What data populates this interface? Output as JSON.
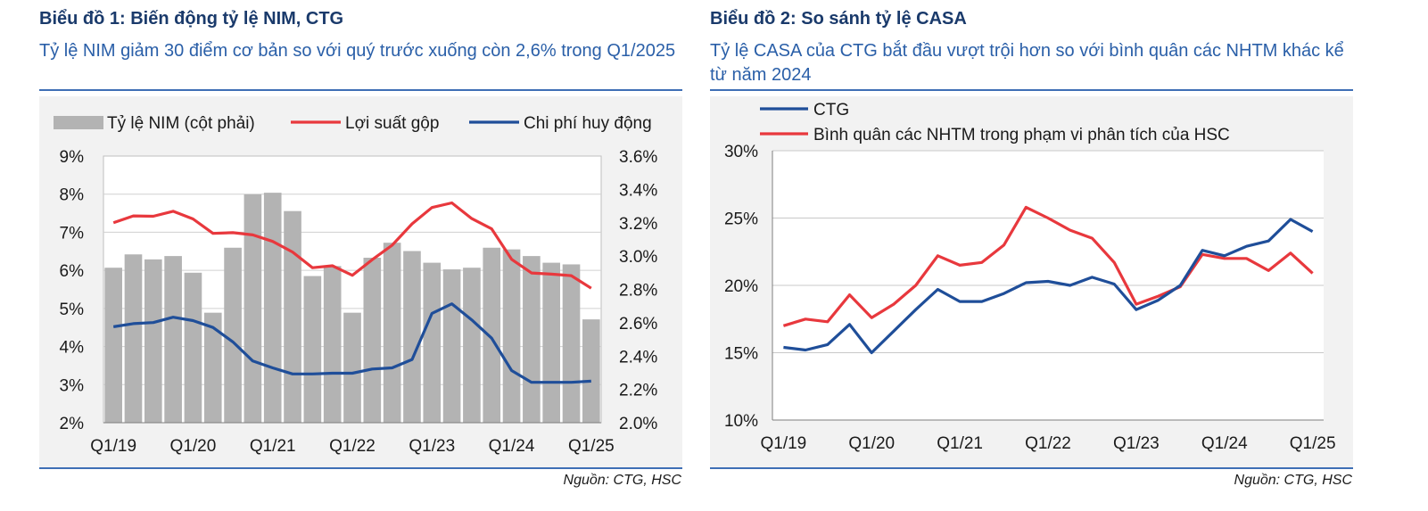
{
  "chart_data": [
    {
      "type": "bar+line",
      "title": "Biểu đồ 1: Biến động tỷ lệ NIM, CTG",
      "subtitle": "Tỷ lệ NIM giảm 30 điểm cơ bản so với quý trước xuống còn 2,6% trong Q1/2025",
      "source": "Nguồn: CTG, HSC",
      "x_tick_labels": [
        "Q1/19",
        "Q1/20",
        "Q1/21",
        "Q1/22",
        "Q1/23",
        "Q1/24",
        "Q1/25"
      ],
      "n_periods": 25,
      "left_axis": {
        "ticks": [
          "9%",
          "8%",
          "7%",
          "6%",
          "5%",
          "4%",
          "3%",
          "2%"
        ],
        "ylim": [
          2,
          9
        ]
      },
      "right_axis": {
        "ticks": [
          "3.6%",
          "3.4%",
          "3.2%",
          "3.0%",
          "2.8%",
          "2.6%",
          "2.4%",
          "2.2%",
          "2.0%"
        ],
        "ylim": [
          2.0,
          3.6
        ]
      },
      "series": [
        {
          "name": "Tỷ lệ NIM (cột phải)",
          "kind": "bar",
          "axis": "right",
          "color": "#b3b3b3",
          "values": [
            2.93,
            3.01,
            2.98,
            3.0,
            2.9,
            2.66,
            3.05,
            3.37,
            3.38,
            3.27,
            2.88,
            2.94,
            2.66,
            2.99,
            3.08,
            3.03,
            2.96,
            2.92,
            2.93,
            3.05,
            3.04,
            3.0,
            2.96,
            2.95,
            2.62
          ]
        },
        {
          "name": "Lợi suất gộp",
          "kind": "line",
          "axis": "left",
          "color": "#e8383d",
          "values": [
            7.25,
            7.43,
            7.42,
            7.55,
            7.35,
            6.97,
            6.99,
            6.93,
            6.76,
            6.48,
            6.07,
            6.12,
            5.87,
            6.28,
            6.66,
            7.22,
            7.65,
            7.77,
            7.36,
            7.09,
            6.29,
            5.93,
            5.9,
            5.86,
            5.53
          ]
        },
        {
          "name": "Chi phí huy động",
          "kind": "line",
          "axis": "left",
          "color": "#1f4e99",
          "values": [
            4.52,
            4.6,
            4.63,
            4.77,
            4.68,
            4.5,
            4.12,
            3.62,
            3.44,
            3.28,
            3.28,
            3.3,
            3.3,
            3.41,
            3.44,
            3.66,
            4.87,
            5.12,
            4.7,
            4.22,
            3.37,
            3.06,
            3.06,
            3.06,
            3.09
          ]
        }
      ]
    },
    {
      "type": "line",
      "title": "Biểu đồ 2: So sánh tỷ lệ CASA",
      "subtitle": "Tỷ lệ CASA của CTG bắt đầu vượt trội hơn so với bình quân các NHTM khác kể từ năm 2024",
      "source": "Nguồn: CTG, HSC",
      "x_tick_labels": [
        "Q1/19",
        "Q1/20",
        "Q1/21",
        "Q1/22",
        "Q1/23",
        "Q1/24",
        "Q1/25"
      ],
      "n_periods": 25,
      "y_axis": {
        "ticks": [
          "30%",
          "25%",
          "20%",
          "15%",
          "10%"
        ],
        "ylim": [
          10,
          30
        ]
      },
      "series": [
        {
          "name": "CTG",
          "color": "#1f4e99",
          "values": [
            15.4,
            15.2,
            15.6,
            17.1,
            15.0,
            16.6,
            18.2,
            19.7,
            18.8,
            18.8,
            19.4,
            20.2,
            20.3,
            20.0,
            20.6,
            20.1,
            18.2,
            18.9,
            20.0,
            22.6,
            22.2,
            22.9,
            23.3,
            24.9,
            24.0
          ]
        },
        {
          "name": "Bình quân các NHTM trong phạm vi phân tích của HSC",
          "color": "#e8383d",
          "values": [
            17.0,
            17.5,
            17.3,
            19.3,
            17.6,
            18.6,
            20.0,
            22.2,
            21.5,
            21.7,
            23.0,
            25.8,
            25.0,
            24.1,
            23.5,
            21.7,
            18.6,
            19.2,
            19.9,
            22.3,
            22.0,
            22.0,
            21.1,
            22.4,
            20.9
          ]
        }
      ]
    }
  ]
}
